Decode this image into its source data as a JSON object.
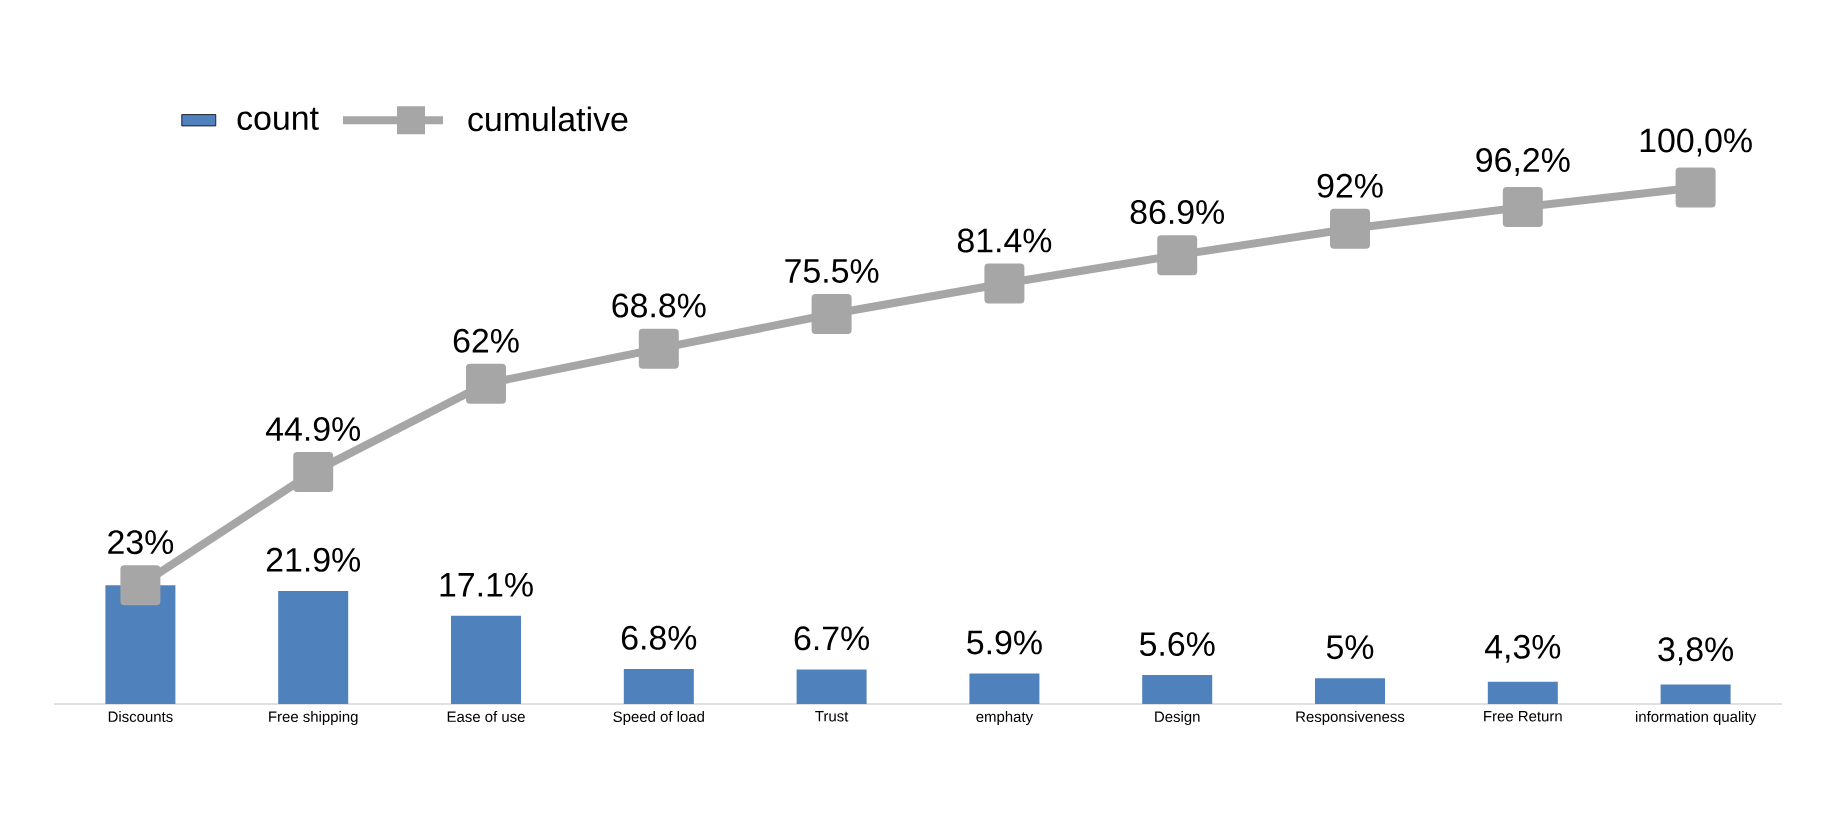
{
  "chart_data": {
    "type": "bar",
    "categories": [
      "Discounts",
      "Free shipping",
      "Ease of use",
      "Speed of load",
      "Trust",
      "emphaty",
      "Design",
      "Responsiveness",
      "Free Return",
      "information quality"
    ],
    "series": [
      {
        "name": "count",
        "color": "#4f81bd",
        "values": [
          23,
          21.9,
          17.1,
          6.8,
          6.7,
          5.9,
          5.6,
          5,
          4.3,
          3.8
        ],
        "value_labels": [
          null,
          "21.9%",
          "17.1%",
          "6.8%",
          "6.7%",
          "5.9%",
          "5.6%",
          "5%",
          "4,3%",
          "3,8%"
        ]
      },
      {
        "name": "cumulative",
        "type": "line",
        "color": "#a6a6a6",
        "values": [
          23,
          44.9,
          62,
          68.8,
          75.5,
          81.4,
          86.9,
          92,
          96.2,
          100
        ],
        "value_labels": [
          "23%",
          "44.9%",
          "62%",
          "68.8%",
          "75.5%",
          "81.4%",
          "86.9%",
          "92%",
          "96,2%",
          "100,0%"
        ]
      }
    ],
    "ylim": [
      0,
      115
    ],
    "tick_labels": "x",
    "legend": "top left",
    "marker": "square",
    "line_style": "solid",
    "grid": false
  }
}
